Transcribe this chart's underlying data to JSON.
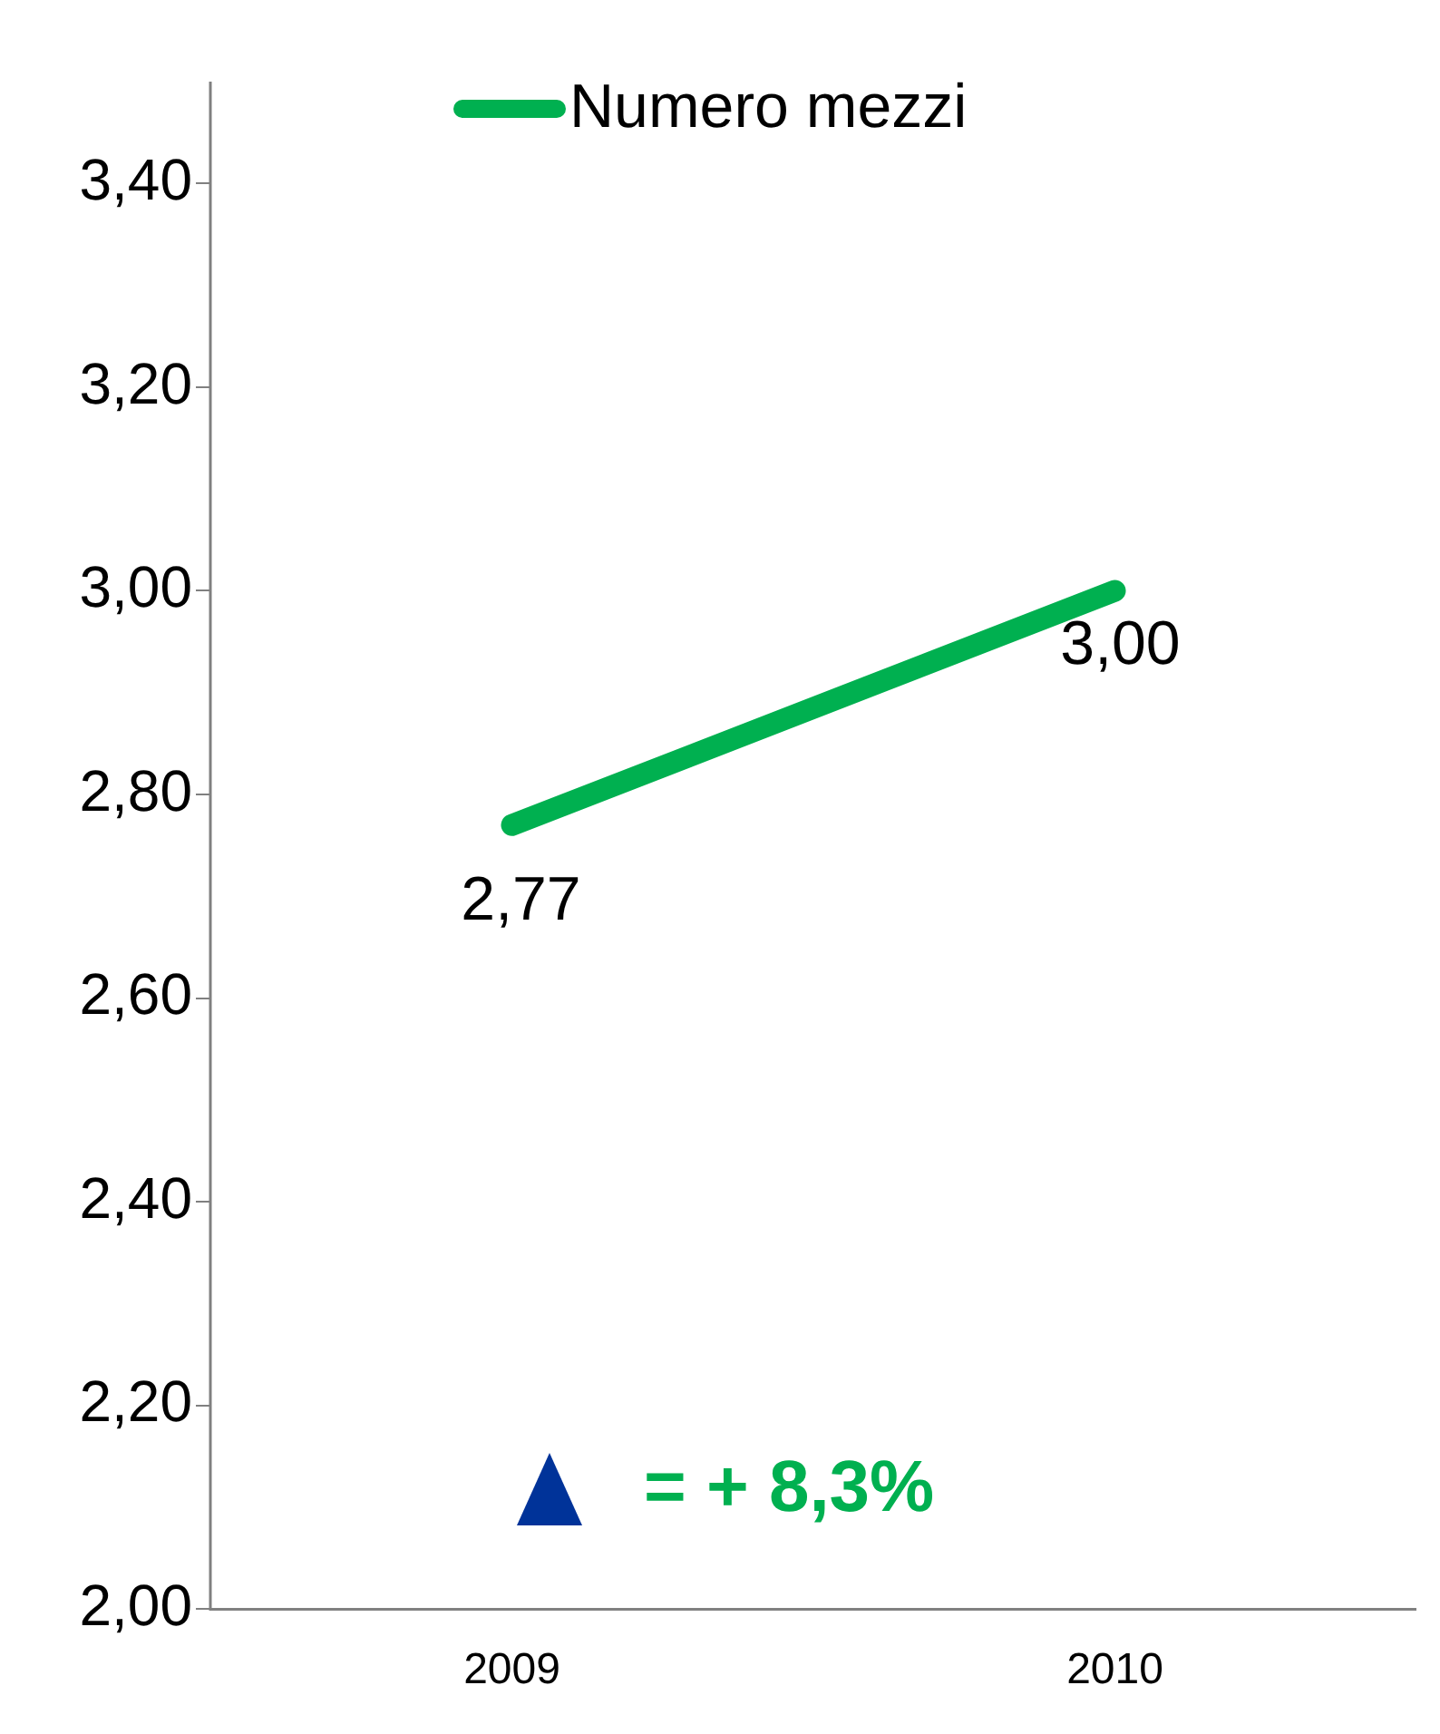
{
  "chart_data": {
    "type": "line",
    "categories": [
      "2009",
      "2010"
    ],
    "series": [
      {
        "name": "Numero mezzi",
        "color": "#00b050",
        "values": [
          2.77,
          3.0
        ],
        "value_labels": [
          "2,77",
          "3,00"
        ]
      }
    ],
    "ylim": [
      2.0,
      3.5
    ],
    "yticks": [
      {
        "value": 2.0,
        "label": "2,00"
      },
      {
        "value": 2.2,
        "label": "2,20"
      },
      {
        "value": 2.4,
        "label": "2,40"
      },
      {
        "value": 2.6,
        "label": "2,60"
      },
      {
        "value": 2.8,
        "label": "2,80"
      },
      {
        "value": 3.0,
        "label": "3,00"
      },
      {
        "value": 3.2,
        "label": "3,20"
      },
      {
        "value": 3.4,
        "label": "3,40"
      }
    ],
    "grid": false,
    "legend": "top",
    "marker": "none",
    "line_style": "solid",
    "annotations": [
      "= + 8,3%"
    ]
  }
}
